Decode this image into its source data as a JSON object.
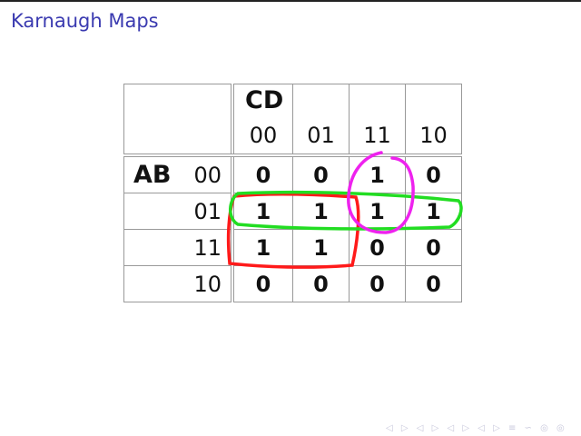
{
  "slide": {
    "title": "Karnaugh Maps",
    "kmap": {
      "row_variable": "AB",
      "col_variable": "CD",
      "col_codes": [
        "00",
        "01",
        "11",
        "10"
      ],
      "rows": [
        {
          "code": "00",
          "values": [
            "0",
            "0",
            "1",
            "0"
          ]
        },
        {
          "code": "01",
          "values": [
            "1",
            "1",
            "1",
            "1"
          ]
        },
        {
          "code": "11",
          "values": [
            "1",
            "1",
            "0",
            "0"
          ]
        },
        {
          "code": "10",
          "values": [
            "0",
            "0",
            "0",
            "0"
          ]
        }
      ]
    },
    "annotations": [
      {
        "color": "#ff1a1a",
        "group": "AB=01/11, CD=00/01"
      },
      {
        "color": "#22dd22",
        "group": "AB=01 row"
      },
      {
        "color": "#ee22ee",
        "group": "AB=00/01, CD=11"
      }
    ],
    "nav_symbols": "◁ ▷ ◁ ▷ ◁ ▷ ◁ ▷ ≡ ∽ ◎ ◎"
  }
}
